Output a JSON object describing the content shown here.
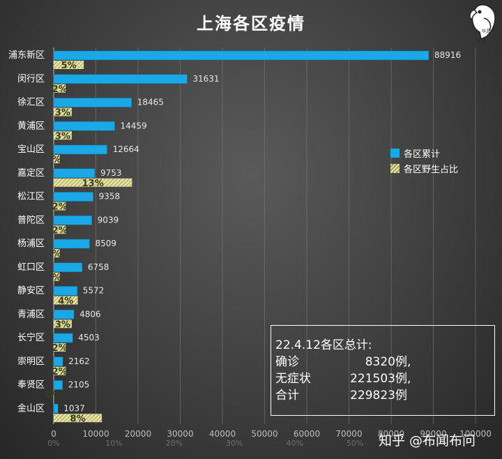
{
  "chart_data": {
    "type": "bar",
    "orientation": "horizontal",
    "title": "上海各区疫情",
    "categories": [
      "浦东新区",
      "闵行区",
      "徐汇区",
      "黄浦区",
      "宝山区",
      "嘉定区",
      "松江区",
      "普陀区",
      "杨浦区",
      "虹口区",
      "静安区",
      "青浦区",
      "长宁区",
      "崇明区",
      "奉贤区",
      "金山区"
    ],
    "series": [
      {
        "name": "各区累计",
        "color": "#1aa9e6",
        "axis": "primary",
        "values": [
          88916,
          31631,
          18465,
          14459,
          12664,
          9753,
          9358,
          9039,
          8509,
          6758,
          5572,
          4806,
          4503,
          2162,
          2105,
          1037
        ],
        "labels": [
          "88916",
          "31631",
          "18465",
          "14459",
          "12664",
          "9753",
          "9358",
          "9039",
          "8509",
          "6758",
          "5572",
          "4806",
          "4503",
          "2162",
          "2105",
          "1037"
        ]
      },
      {
        "name": "各区野生占比",
        "color": "#e9e6a3",
        "axis": "secondary",
        "values": [
          5,
          2,
          3,
          3,
          1,
          13,
          2,
          2,
          1,
          1,
          4,
          3,
          2,
          2,
          0,
          8
        ],
        "labels": [
          "5%",
          "2%",
          "3%",
          "3%",
          "%",
          "13%",
          "2%",
          "2%",
          "%",
          "%",
          "4%",
          "3%",
          "2%",
          "2%",
          "0%",
          "8%"
        ]
      }
    ],
    "xaxis_primary": {
      "range": [
        0,
        100000
      ],
      "ticks": [
        "0",
        "10000",
        "20000",
        "30000",
        "40000",
        "50000",
        "60000",
        "70000",
        "80000",
        "90000",
        "100000"
      ]
    },
    "xaxis_secondary": {
      "range": [
        0,
        70
      ],
      "ticks": [
        "0%",
        "10%",
        "20%",
        "30%",
        "40%",
        "50%"
      ]
    },
    "legend_position": "right-middle",
    "grid": "vertical"
  },
  "summary": {
    "title": "22.4.12各区总计:",
    "rows": [
      {
        "label": "确诊",
        "value": "8320",
        "unit": "例,"
      },
      {
        "label": "无症状",
        "value": "221503",
        "unit": "例,"
      },
      {
        "label": "合计",
        "value": "229823",
        "unit": "例"
      }
    ]
  },
  "watermark": "知乎 @布闻布问",
  "logo_text": "华灵"
}
